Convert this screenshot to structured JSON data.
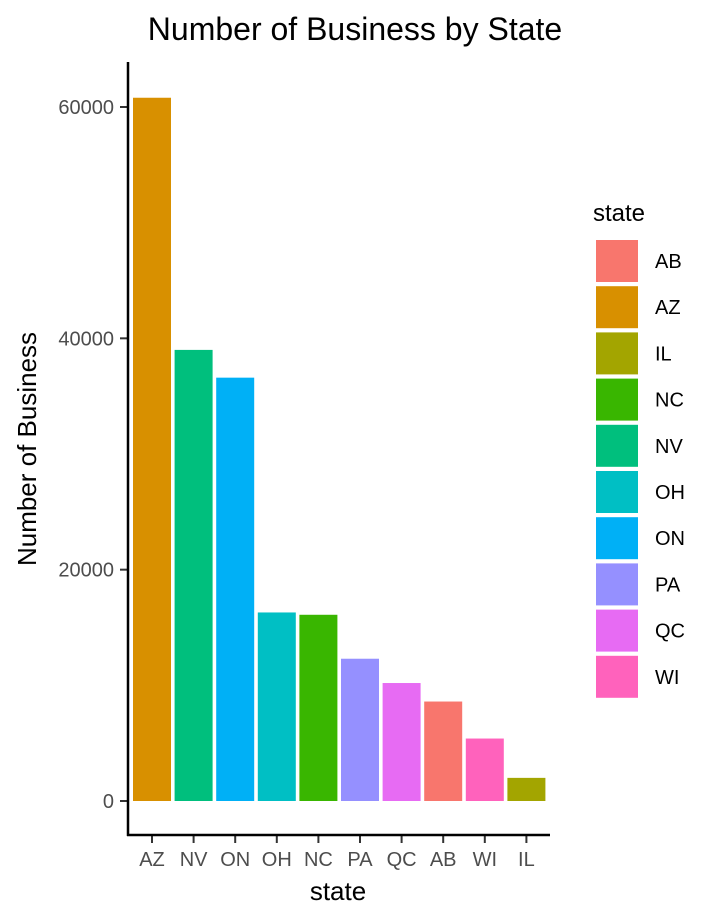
{
  "chart_data": {
    "type": "bar",
    "title": "Number of Business by State",
    "xlabel": "state",
    "ylabel": "Number of Business",
    "ylim": [
      0,
      64000
    ],
    "yticks": [
      0,
      20000,
      40000,
      60000
    ],
    "grid": false,
    "legend": {
      "title": "state",
      "placement": "right",
      "entries": [
        "AB",
        "AZ",
        "IL",
        "NC",
        "NV",
        "OH",
        "ON",
        "PA",
        "QC",
        "WI"
      ]
    },
    "categories": [
      "AZ",
      "NV",
      "ON",
      "OH",
      "NC",
      "PA",
      "QC",
      "AB",
      "WI",
      "IL"
    ],
    "values": [
      60800,
      39000,
      36600,
      16300,
      16100,
      12300,
      10200,
      8600,
      5400,
      2000
    ]
  },
  "colors": {
    "AB": "#F8766D",
    "AZ": "#D89000",
    "IL": "#A3A500",
    "NC": "#39B600",
    "NV": "#00BF7D",
    "OH": "#00BFC4",
    "ON": "#00B0F6",
    "PA": "#9590FF",
    "QC": "#E76BF3",
    "WI": "#FF62BC"
  }
}
